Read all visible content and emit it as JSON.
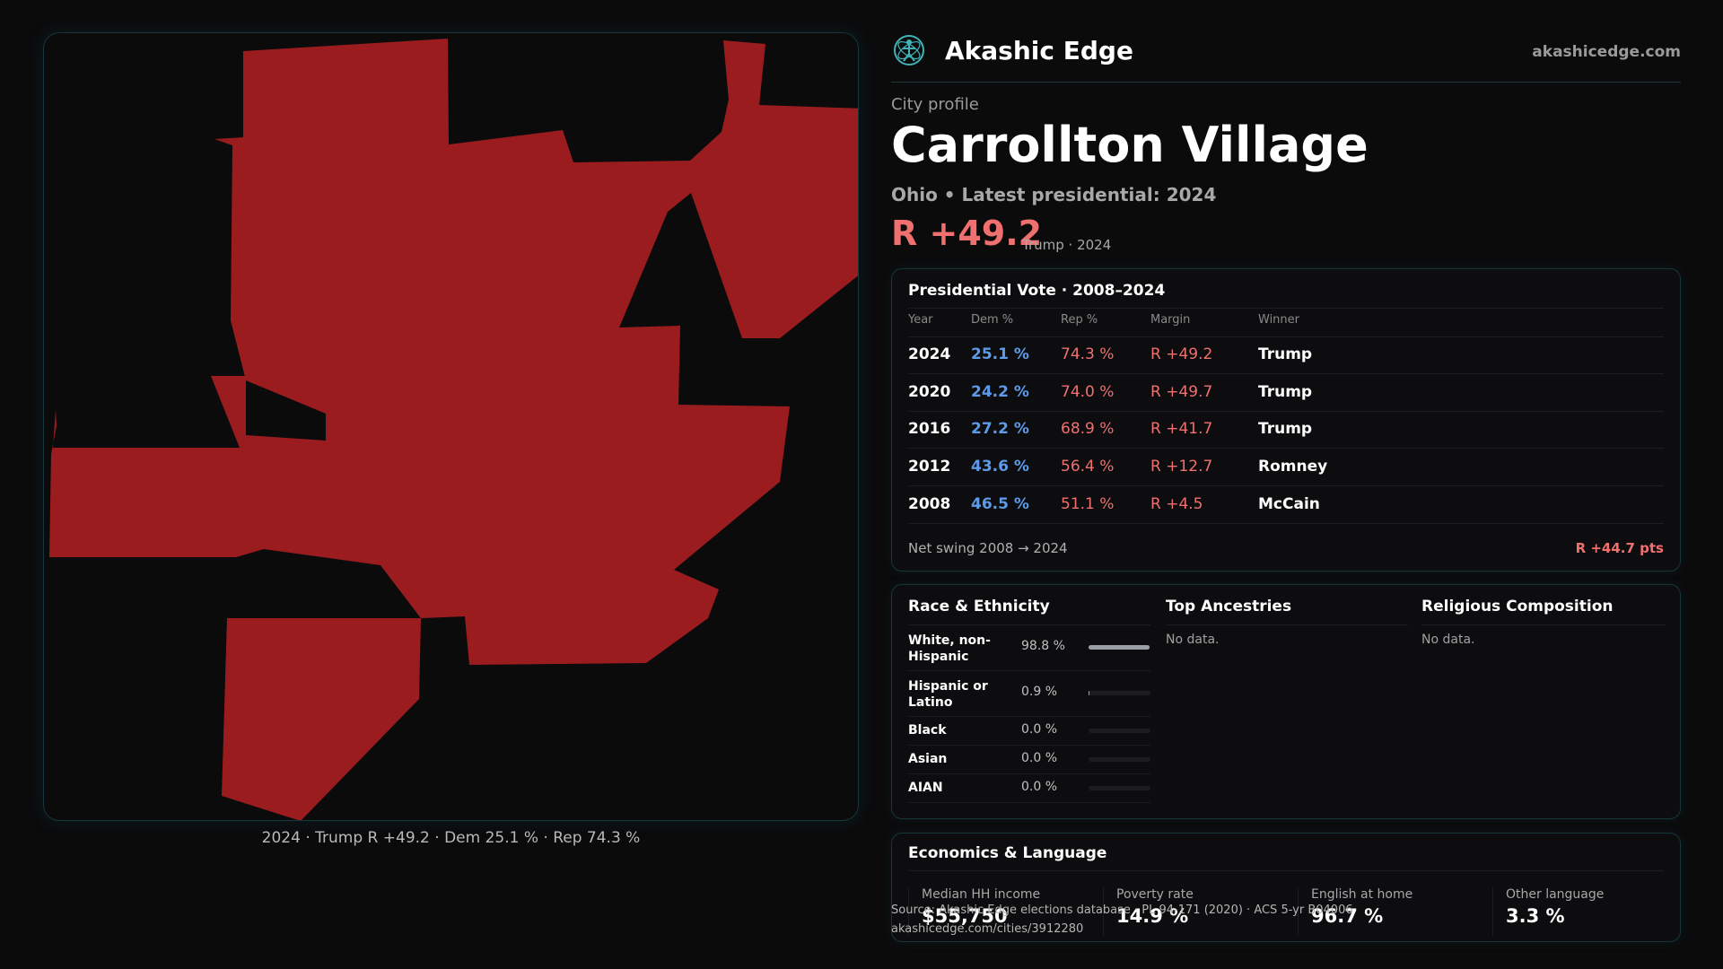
{
  "map": {
    "caption": "2024 · Trump R +49.2 · Dem 25.1 % · Rep 74.3 %",
    "fill_color": "#9b1c1f"
  },
  "header": {
    "brand": "Akashic Edge",
    "site": "akashicedge.com",
    "logo_icon": "atom-figure-icon"
  },
  "profile": {
    "eyebrow": "City profile",
    "title": "Carrollton Village",
    "subtitle": "Ohio • Latest presidential: 2024",
    "margin": "R +49.2",
    "margin_note": "Trump · 2024"
  },
  "votes": {
    "title": "Presidential Vote · 2008–2024",
    "headers": [
      "Year",
      "Dem %",
      "Rep %",
      "Margin",
      "Winner"
    ],
    "rows": [
      {
        "year": "2024",
        "dem": "25.1 %",
        "rep": "74.3 %",
        "margin": "R +49.2",
        "winner": "Trump"
      },
      {
        "year": "2020",
        "dem": "24.2 %",
        "rep": "74.0 %",
        "margin": "R +49.7",
        "winner": "Trump"
      },
      {
        "year": "2016",
        "dem": "27.2 %",
        "rep": "68.9 %",
        "margin": "R +41.7",
        "winner": "Trump"
      },
      {
        "year": "2012",
        "dem": "43.6 %",
        "rep": "56.4 %",
        "margin": "R +12.7",
        "winner": "Romney"
      },
      {
        "year": "2008",
        "dem": "46.5 %",
        "rep": "51.1 %",
        "margin": "R +4.5",
        "winner": "McCain"
      }
    ],
    "swing_label": "Net swing 2008 → 2024",
    "swing_value": "R +44.7 pts"
  },
  "demographics": {
    "race_title": "Race & Ethnicity",
    "race": [
      {
        "name": "White, non-Hispanic",
        "pct": "98.8 %",
        "value": 0.988
      },
      {
        "name": "Hispanic or Latino",
        "pct": "0.9 %",
        "value": 0.009
      },
      {
        "name": "Black",
        "pct": "0.0 %",
        "value": 0
      },
      {
        "name": "Asian",
        "pct": "0.0 %",
        "value": 0
      },
      {
        "name": "AIAN",
        "pct": "0.0 %",
        "value": 0
      }
    ],
    "ancestry_title": "Top Ancestries",
    "ancestry_empty": "No data.",
    "religion_title": "Religious Composition",
    "religion_empty": "No data."
  },
  "economics": {
    "title": "Economics & Language",
    "stats": [
      {
        "label": "Median HH income",
        "value": "$55,750"
      },
      {
        "label": "Poverty rate",
        "value": "14.9 %"
      },
      {
        "label": "English at home",
        "value": "96.7 %"
      },
      {
        "label": "Other language",
        "value": "3.3 %"
      }
    ]
  },
  "source": {
    "line1": "Source: Akashic Edge elections database · PL 94-171 (2020) · ACS 5-yr B04006",
    "line2": "akashicedge.com/cities/3912280"
  }
}
